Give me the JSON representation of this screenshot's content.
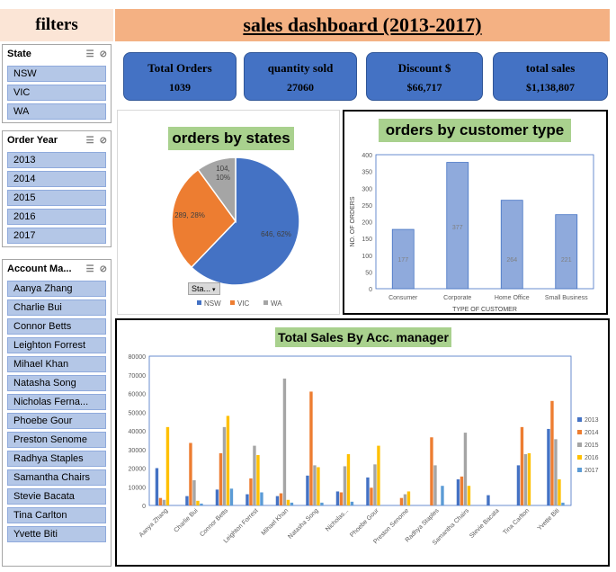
{
  "header": {
    "filters_label": "filters",
    "dashboard_title": "sales dashboard (2013-2017)"
  },
  "slicers": {
    "state": {
      "title": "State",
      "items": [
        "NSW",
        "VIC",
        "WA"
      ]
    },
    "order_year": {
      "title": "Order Year",
      "items": [
        "2013",
        "2014",
        "2015",
        "2016",
        "2017"
      ]
    },
    "account_manager": {
      "title": "Account Ma...",
      "items": [
        "Aanya Zhang",
        "Charlie Bui",
        "Connor Betts",
        "Leighton Forrest",
        "Mihael Khan",
        "Natasha Song",
        "Nicholas Ferna...",
        "Phoebe Gour",
        "Preston Senome",
        "Radhya Staples",
        "Samantha Chairs",
        "Stevie Bacata",
        "Tina Carlton",
        "Yvette Biti"
      ]
    }
  },
  "kpis": [
    {
      "label": "Total Orders",
      "value": "1039"
    },
    {
      "label": "quantity sold",
      "value": "27060"
    },
    {
      "label": "Discount $",
      "value": "$66,717"
    },
    {
      "label": "total sales",
      "value": "$1,138,807"
    }
  ],
  "colors": {
    "accent_blue": "#4472c4",
    "orange": "#ed7d31",
    "gray": "#a5a5a5",
    "yellow": "#ffc000",
    "light_blue": "#5b9bd5",
    "title_green": "#a9d18e",
    "header_orange": "#f4b183"
  },
  "chart_data": [
    {
      "type": "pie",
      "title": "orders by states",
      "filter_button": "Sta...",
      "categories": [
        "NSW",
        "VIC",
        "WA"
      ],
      "values": [
        646,
        289,
        104
      ],
      "labels": [
        "646, 62%",
        "289, 28%",
        "104, 10%"
      ],
      "colors": [
        "#4472c4",
        "#ed7d31",
        "#a5a5a5"
      ],
      "legend": "bottom"
    },
    {
      "type": "bar",
      "title": "orders by customer type",
      "categories": [
        "Consumer",
        "Corporate",
        "Home Office",
        "Small Business"
      ],
      "values": [
        177,
        377,
        264,
        221
      ],
      "xlabel": "TYPE OF CUSTOMER",
      "ylabel": "NO. OF ORDERS",
      "ylim": [
        0,
        400
      ],
      "yticks": [
        0,
        50,
        100,
        150,
        200,
        250,
        300,
        350,
        400
      ],
      "grid": false
    },
    {
      "type": "bar",
      "title": "Total Sales By Acc. manager",
      "categories": [
        "Aanya Zhang",
        "Charlie Bui",
        "Connor Betts",
        "Leighton Forrest",
        "Mihael Khan",
        "Natasha Song",
        "Nicholas...",
        "Phoebe Gour",
        "Preston Senome",
        "Radhya Staples",
        "Samantha Chairs",
        "Stevie Bacata",
        "Tina Carlton",
        "Yvette Biti"
      ],
      "series": [
        {
          "name": "2013",
          "color": "#4472c4",
          "values": [
            20000,
            5000,
            8500,
            6000,
            5000,
            16000,
            7500,
            15000,
            0,
            0,
            14000,
            5500,
            21500,
            41000
          ]
        },
        {
          "name": "2014",
          "color": "#ed7d31",
          "values": [
            4000,
            33500,
            28000,
            14500,
            6500,
            61000,
            7000,
            9500,
            4000,
            36500,
            15500,
            0,
            42000,
            56000
          ]
        },
        {
          "name": "2015",
          "color": "#a5a5a5",
          "values": [
            3000,
            13500,
            42000,
            32000,
            68000,
            21500,
            21000,
            22000,
            6000,
            21500,
            39000,
            0,
            27500,
            35500
          ]
        },
        {
          "name": "2016",
          "color": "#ffc000",
          "values": [
            42000,
            2500,
            48000,
            27000,
            3000,
            20500,
            27500,
            32000,
            7500,
            0,
            10500,
            0,
            28000,
            14000
          ]
        },
        {
          "name": "2017",
          "color": "#5b9bd5",
          "values": [
            0,
            1000,
            9000,
            7000,
            1500,
            1500,
            2000,
            0,
            0,
            10500,
            0,
            0,
            0,
            1500
          ]
        }
      ],
      "ylim": [
        0,
        80000
      ],
      "yticks": [
        0,
        10000,
        20000,
        30000,
        40000,
        50000,
        60000,
        70000,
        80000
      ],
      "legend": "right"
    }
  ]
}
